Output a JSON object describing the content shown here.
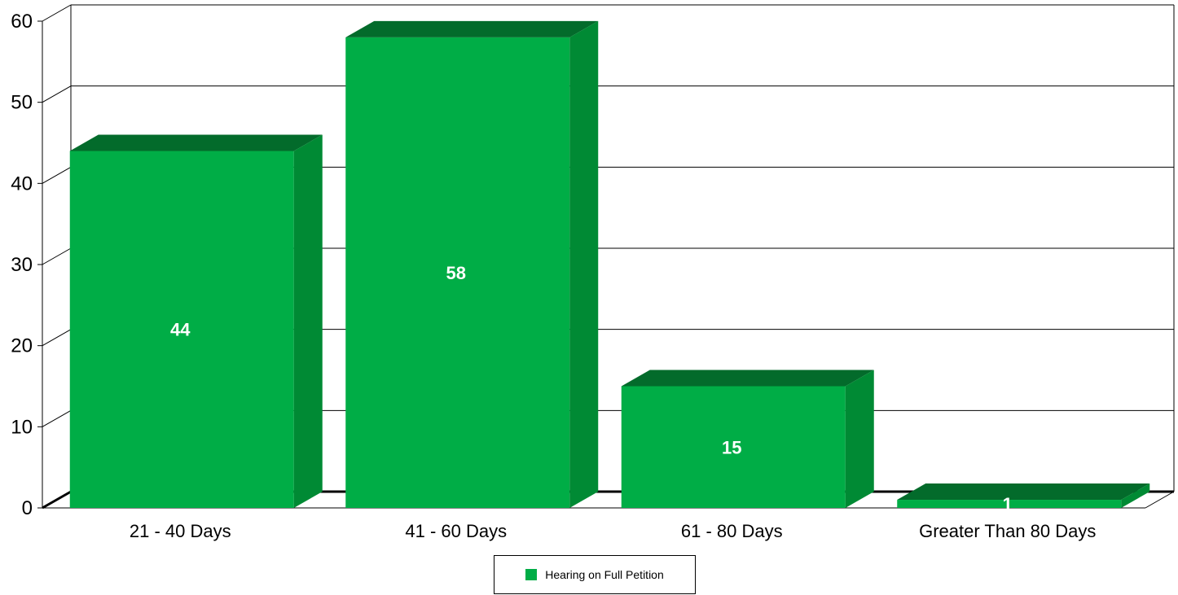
{
  "chart_data": {
    "type": "bar",
    "categories": [
      "21 - 40 Days",
      "41 - 60 Days",
      "61 - 80 Days",
      "Greater Than 80 Days"
    ],
    "series": [
      {
        "name": "Hearing on Full Petition",
        "values": [
          44,
          58,
          15,
          1
        ]
      }
    ],
    "data_labels": [
      "44",
      "58",
      "15",
      "1"
    ],
    "y_ticks": [
      "0",
      "10",
      "20",
      "30",
      "40",
      "50",
      "60"
    ],
    "ylim": [
      0,
      60
    ],
    "grid": true,
    "legend_position": "bottom-center",
    "style": "3d-bar",
    "colors": {
      "bar_front": "#00ad46",
      "bar_top": "#036b2b",
      "bar_side": "#008a34"
    }
  }
}
